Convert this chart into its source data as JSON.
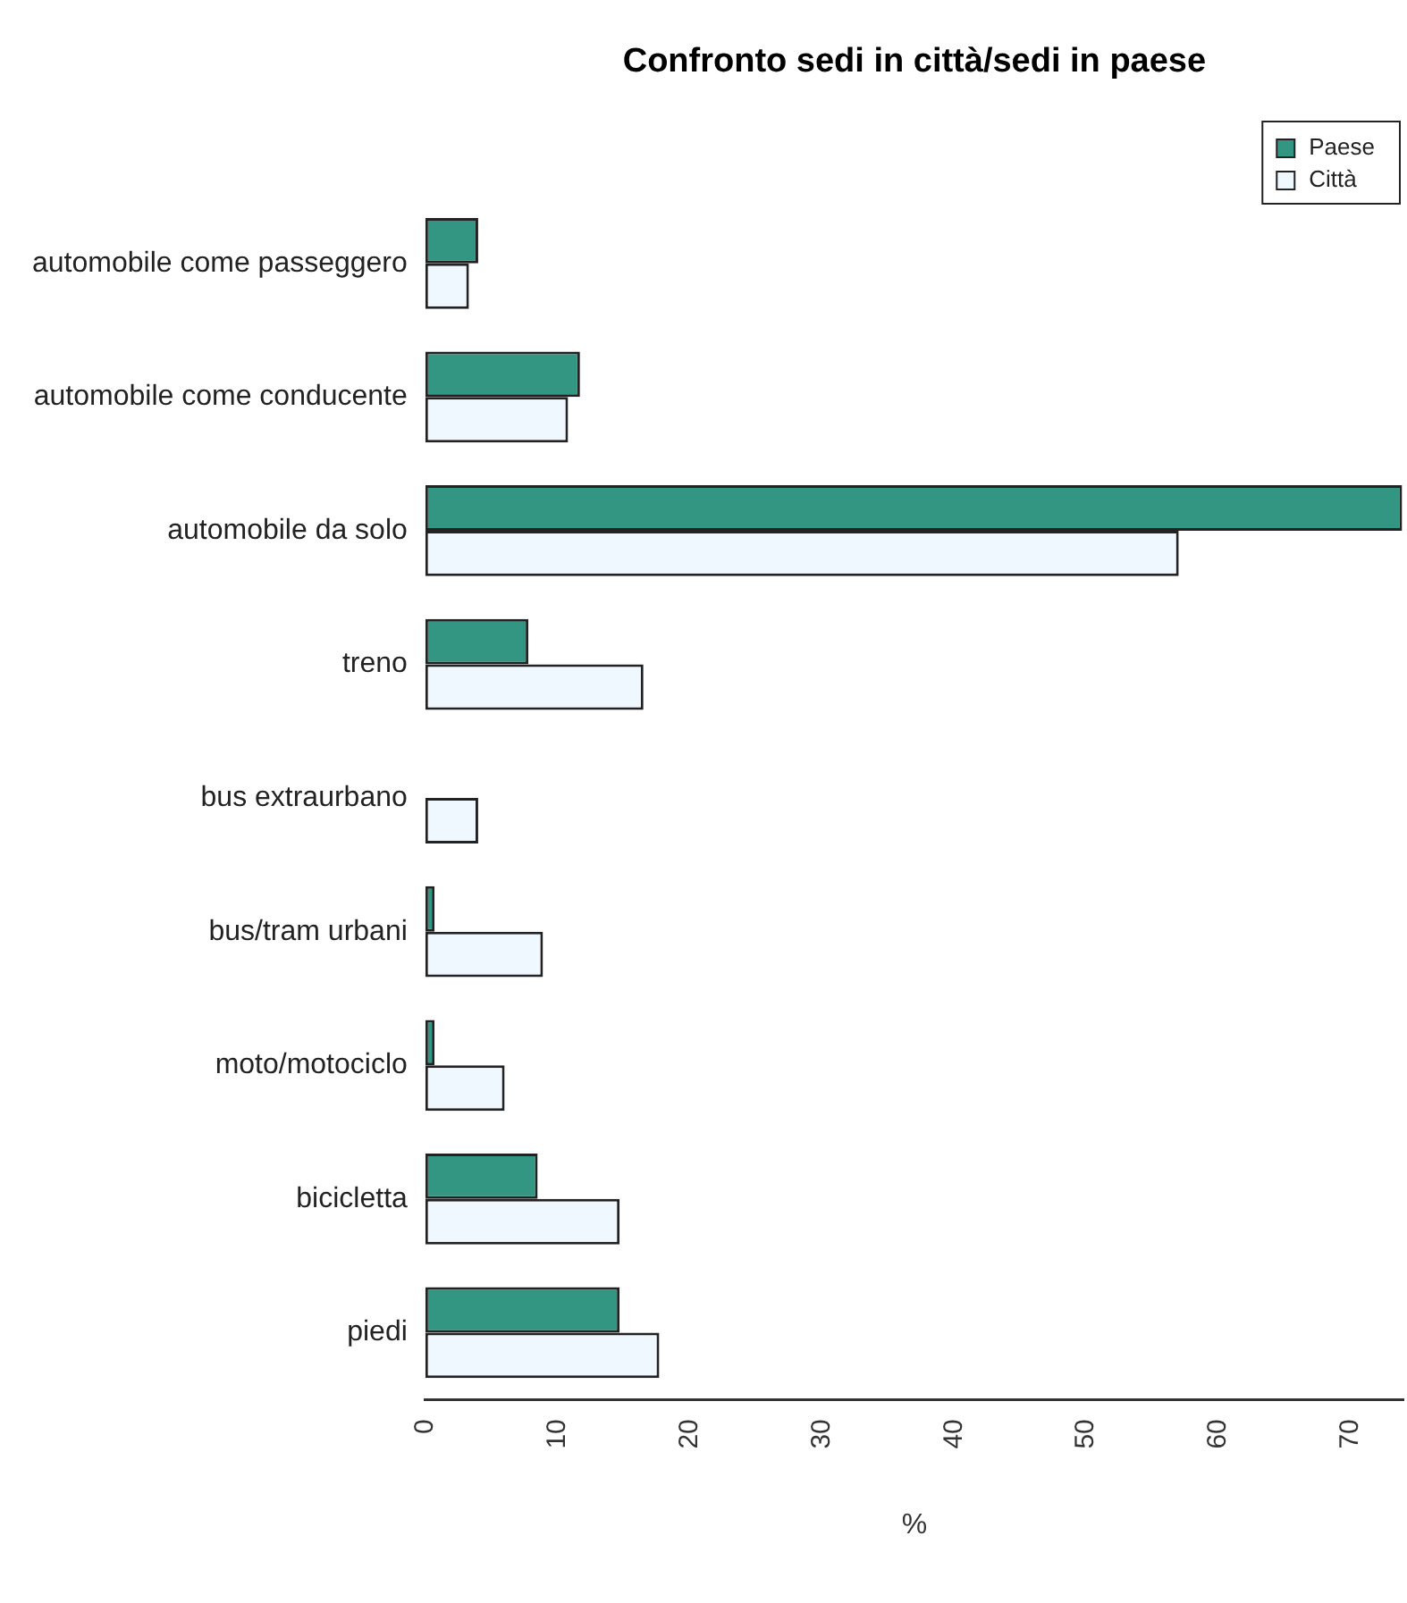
{
  "chart_data": {
    "type": "bar",
    "orientation": "horizontal",
    "title": "Confronto sedi in città/sedi in paese",
    "xlabel": "%",
    "categories": [
      "automobile come passeggero",
      "automobile come conducente",
      "automobile da solo",
      "treno",
      "bus extraurbano",
      "bus/tram urbani",
      "moto/motociclo",
      "bicicletta",
      "piedi"
    ],
    "series": [
      {
        "name": "Paese",
        "color": "#339683",
        "values": [
          4.0,
          11.7,
          73.9,
          7.8,
          0,
          0.7,
          0.7,
          8.5,
          14.7
        ]
      },
      {
        "name": "Città",
        "color": "#f0f8ff",
        "values": [
          3.3,
          10.8,
          57.0,
          16.5,
          4.0,
          8.9,
          6.0,
          14.7,
          17.7
        ]
      }
    ],
    "xlim": [
      0,
      74
    ],
    "xticks": [
      0,
      10,
      20,
      30,
      40,
      50,
      60,
      70
    ],
    "grid": false,
    "legend": "top right"
  }
}
